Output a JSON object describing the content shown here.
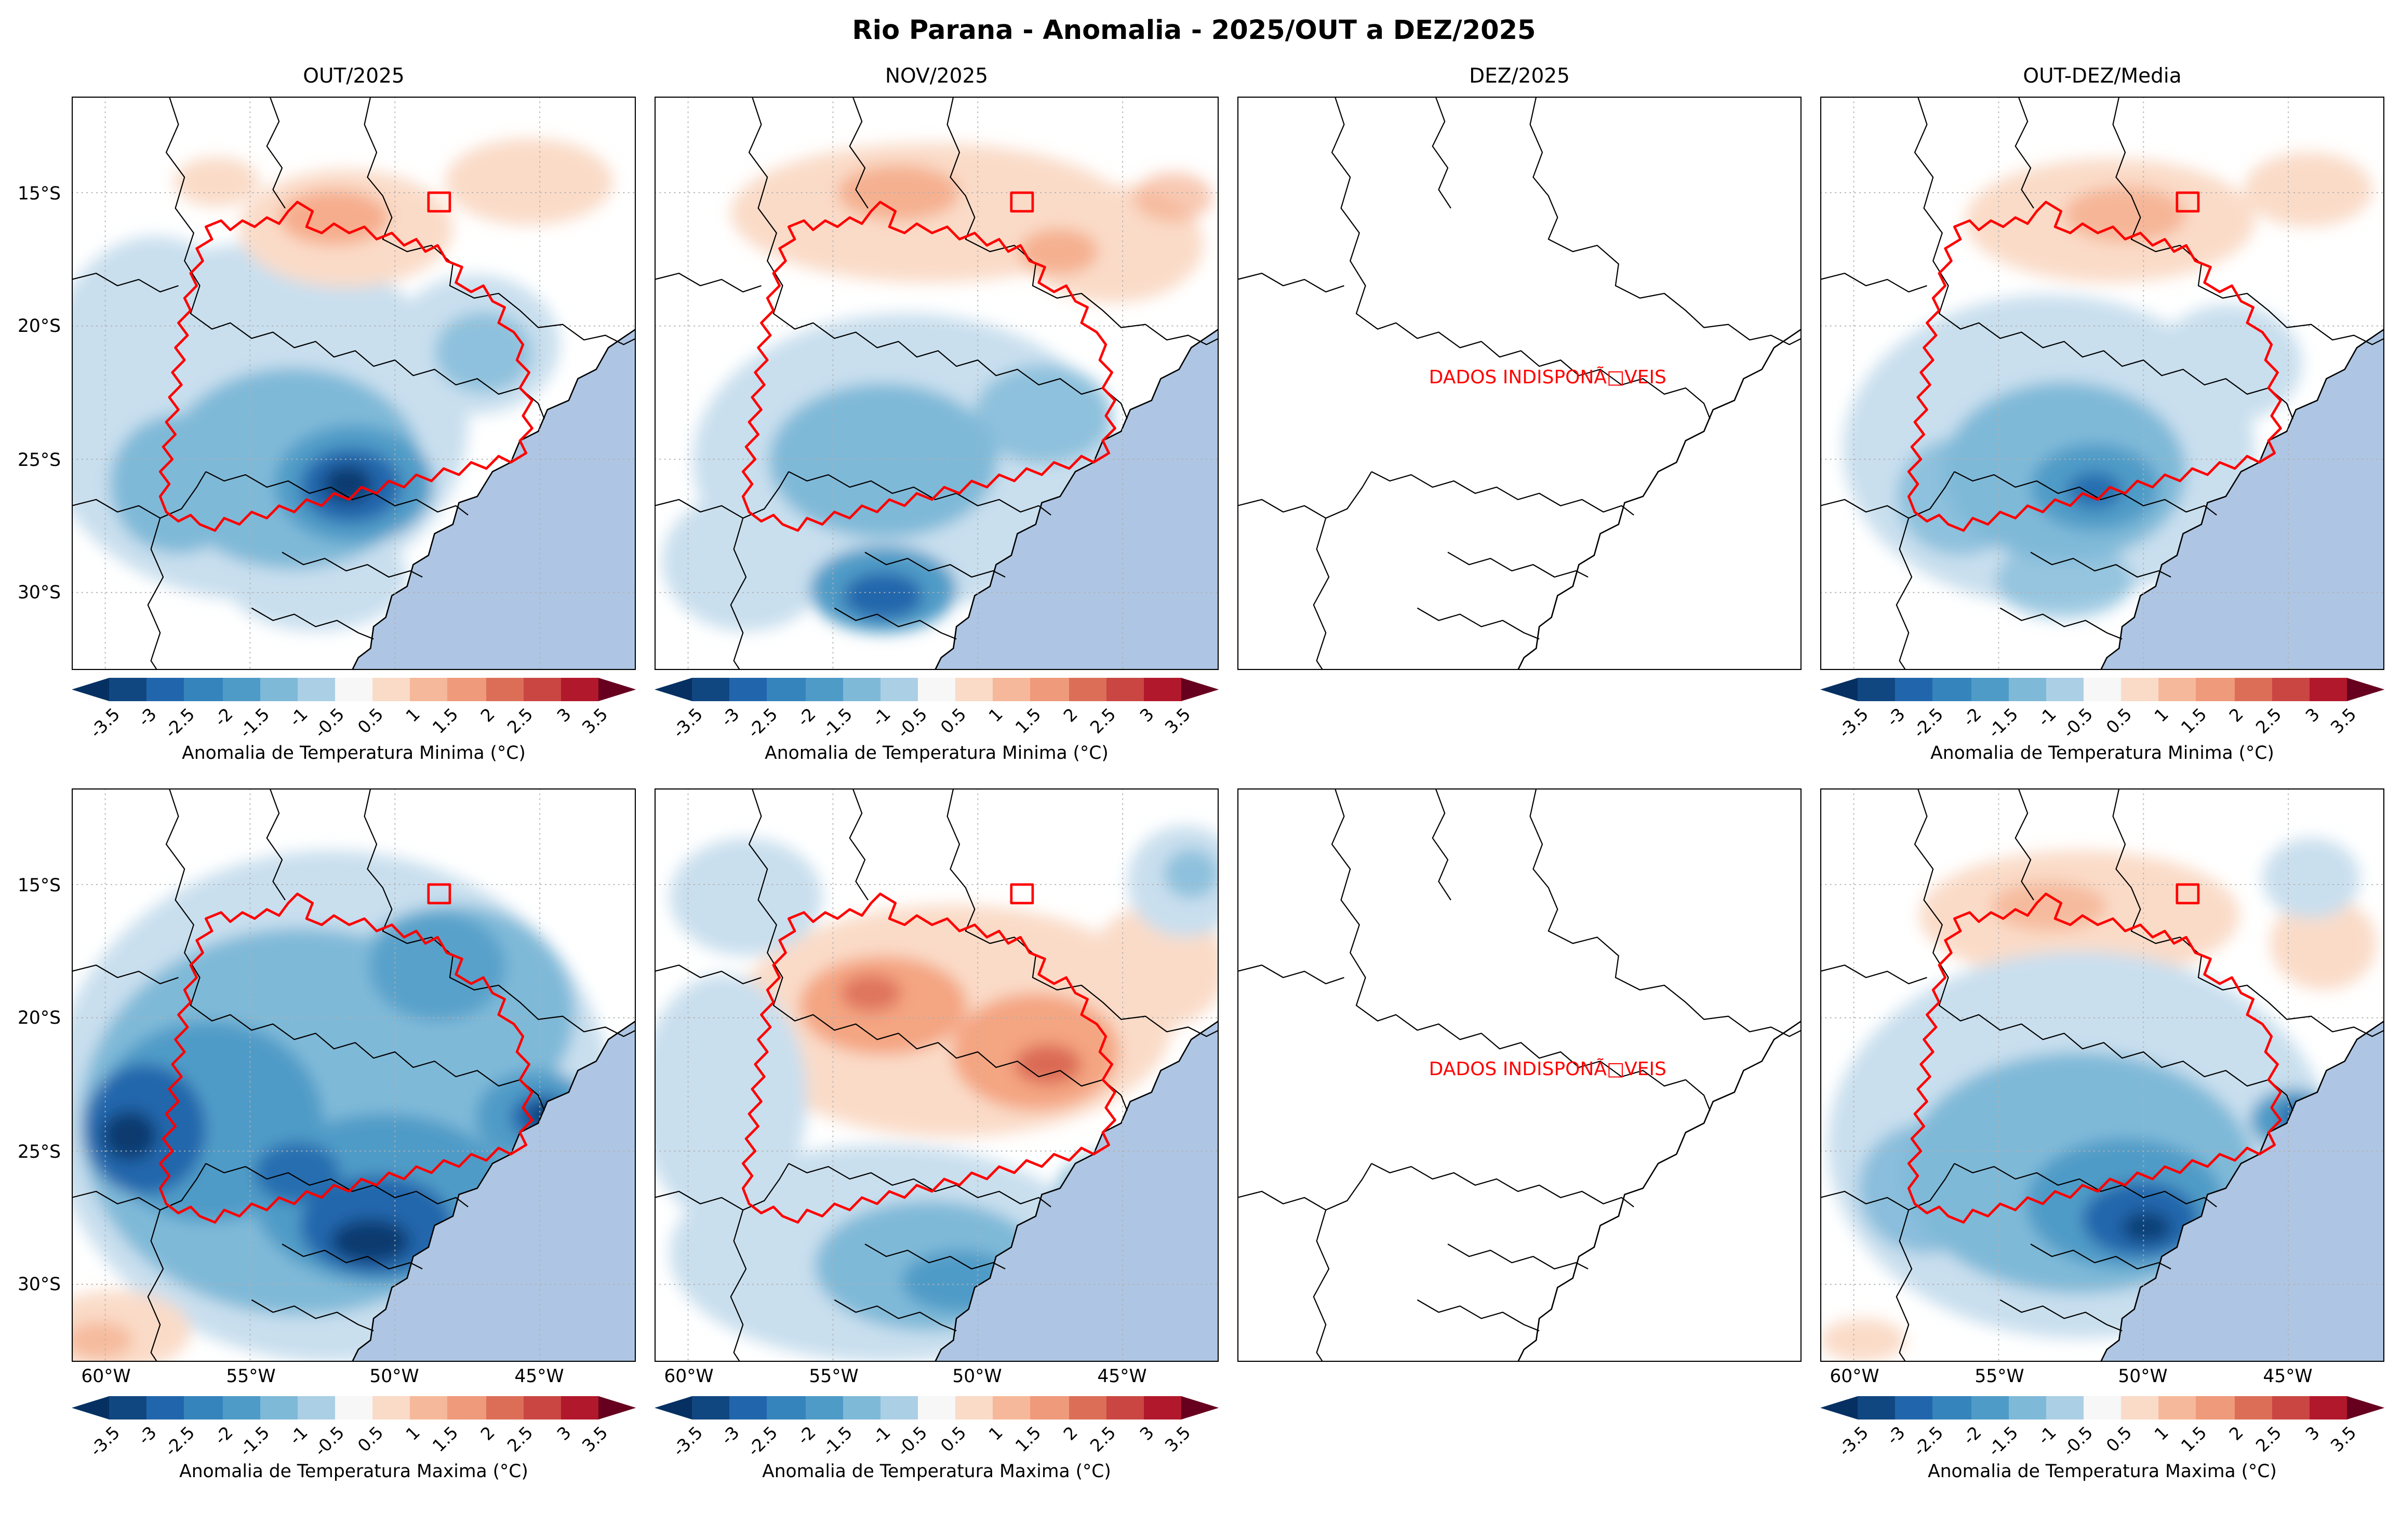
{
  "title": "Rio Parana - Anomalia - 2025/OUT a DEZ/2025",
  "columns": [
    "OUT/2025",
    "NOV/2025",
    "DEZ/2025",
    "OUT-DEZ/Media"
  ],
  "rows": [
    {
      "name": "minima",
      "cbar_label": "Anomalia de Temperatura Minima (°C)"
    },
    {
      "name": "maxima",
      "cbar_label": "Anomalia de Temperatura Maxima (°C)"
    }
  ],
  "no_data_text": "DADOS INDISPONÃ□VEIS",
  "axes": {
    "lat_ticks": [
      "15°S",
      "20°S",
      "25°S",
      "30°S"
    ],
    "lon_ticks": [
      "60°W",
      "55°W",
      "50°W",
      "45°W"
    ]
  },
  "colorbar": {
    "ticks": [
      "-3.5",
      "-3",
      "-2.5",
      "-2",
      "-1.5",
      "-1",
      "-0.5",
      "0.5",
      "1",
      "1.5",
      "2",
      "2.5",
      "3",
      "3.5"
    ],
    "segment_colors": [
      "#053061",
      "#114781",
      "#2166ac",
      "#3584bc",
      "#4f9bc7",
      "#7fb9d8",
      "#abcfe5",
      "#f7f7f7",
      "#fadbc8",
      "#f6b89a",
      "#ef9a7a",
      "#dc6e58",
      "#c94642",
      "#b2182b",
      "#67001f"
    ]
  },
  "palette": {
    "ocean": "#aec6e3",
    "basin_outline": "#ff0000",
    "no_data_text_color": "#ff0000",
    "state_borders": "#000000",
    "strong_negative": "#0a3b70",
    "strong_positive": "#d6604d"
  },
  "chart_data": {
    "type": "heatmap",
    "title": "Rio Parana - Anomalia - 2025/OUT a DEZ/2025",
    "grid": {
      "rows": 2,
      "cols": 4
    },
    "row_variables": [
      "Anomalia de Temperatura Minima (°C)",
      "Anomalia de Temperatura Maxima (°C)"
    ],
    "col_periods": [
      "OUT/2025",
      "NOV/2025",
      "DEZ/2025",
      "OUT-DEZ/Media"
    ],
    "colorbar": {
      "units": "°C",
      "tick_values": [
        -3.5,
        -3,
        -2.5,
        -2,
        -1.5,
        -1,
        -0.5,
        0.5,
        1,
        1.5,
        2,
        2.5,
        3,
        3.5
      ],
      "value_range_c": [
        -3.5,
        3.5
      ],
      "extend": "both",
      "cmap": "RdBu_r (blue = negative anomaly, red = positive anomaly)"
    },
    "axes": {
      "lat_ticks_deg": [
        -15,
        -20,
        -25,
        -30
      ],
      "lon_ticks_deg": [
        -60,
        -55,
        -50,
        -45
      ],
      "approx_lat_range_deg": [
        -33,
        -11.5
      ],
      "approx_lon_range_deg": [
        -61.5,
        -42
      ],
      "grid": true,
      "basin_outline": "Rio Parana basin drawn in red on all data panels"
    },
    "panels": [
      {
        "row": 0,
        "col": 0,
        "variable": "Tmin",
        "period": "OUT/2025",
        "has_data": true,
        "summary": "Widespread negative anomalies -0.5 to -2 °C over basin; strong core near -3 to -3.5 °C around 24-26°S / 48-52°W; weak positive anomalies +0.5 to +1.5 °C in the north (14-17°S)"
      },
      {
        "row": 0,
        "col": 1,
        "variable": "Tmin",
        "period": "NOV/2025",
        "has_data": true,
        "summary": "Positive anomalies +0.5 to +2 °C across the north band; moderate negative -0.5 to -1.5 °C over central basin; dark blue spot near -2.5 °C around 30°S / 53°W"
      },
      {
        "row": 0,
        "col": 2,
        "variable": "Tmin",
        "period": "DEZ/2025",
        "has_data": false,
        "summary": "No data available (DADOS INDISPONIVEIS)"
      },
      {
        "row": 0,
        "col": 3,
        "variable": "Tmin",
        "period": "OUT-DEZ/Media",
        "has_data": true,
        "summary": "Mean of available months: negative anomalies -0.5 to -2 °C over basin, local core near -2.5 °C; weak positive +0.5 to +1.5 °C in the north"
      },
      {
        "row": 1,
        "col": 0,
        "variable": "Tmax",
        "period": "OUT/2025",
        "has_data": true,
        "summary": "Extensive strong negative anomalies -1 to -3.5 °C over nearly the whole domain; darkest cores (-3 to -3.5 °C) west edge, south-central basin and near 22°S/45°W; small positive +0.5 to +1 °C in far southwest corner"
      },
      {
        "row": 1,
        "col": 1,
        "variable": "Tmax",
        "period": "NOV/2025",
        "has_data": true,
        "summary": "Positive anomalies +0.5 to +2.5 °C over northern/central band (17-21°S); negative -0.5 to -2 °C over the south and coastal Sao Paulo region"
      },
      {
        "row": 1,
        "col": 2,
        "variable": "Tmax",
        "period": "DEZ/2025",
        "has_data": false,
        "summary": "No data available (DADOS INDISPONIVEIS)"
      },
      {
        "row": 1,
        "col": 3,
        "variable": "Tmax",
        "period": "OUT-DEZ/Media",
        "has_data": true,
        "summary": "Mean: negative anomalies -0.5 to -3 °C over central/southern basin with dark cores near 24°S/47°W; weak positive +0.5 to +1 °C in the north"
      }
    ]
  }
}
